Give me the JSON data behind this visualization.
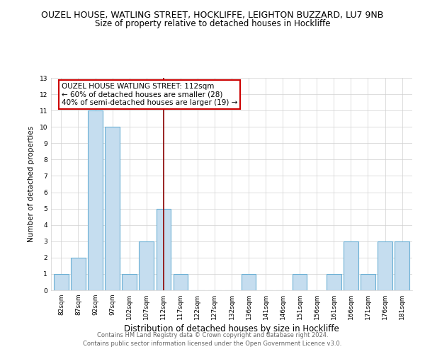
{
  "title": "OUZEL HOUSE, WATLING STREET, HOCKLIFFE, LEIGHTON BUZZARD, LU7 9NB",
  "subtitle": "Size of property relative to detached houses in Hockliffe",
  "xlabel": "Distribution of detached houses by size in Hockliffe",
  "ylabel": "Number of detached properties",
  "bar_labels": [
    "82sqm",
    "87sqm",
    "92sqm",
    "97sqm",
    "102sqm",
    "107sqm",
    "112sqm",
    "117sqm",
    "122sqm",
    "127sqm",
    "132sqm",
    "136sqm",
    "141sqm",
    "146sqm",
    "151sqm",
    "156sqm",
    "161sqm",
    "166sqm",
    "171sqm",
    "176sqm",
    "181sqm"
  ],
  "bar_values": [
    1,
    2,
    11,
    10,
    1,
    3,
    5,
    1,
    0,
    0,
    0,
    1,
    0,
    0,
    1,
    0,
    1,
    3,
    1,
    3,
    3
  ],
  "bar_color": "#c5ddef",
  "bar_edge_color": "#6aafd4",
  "ylim": [
    0,
    13
  ],
  "yticks": [
    0,
    1,
    2,
    3,
    4,
    5,
    6,
    7,
    8,
    9,
    10,
    11,
    12,
    13
  ],
  "highlight_index": 6,
  "highlight_line_color": "#8b0000",
  "annotation_text_line1": "OUZEL HOUSE WATLING STREET: 112sqm",
  "annotation_text_line2": "← 60% of detached houses are smaller (28)",
  "annotation_text_line3": "40% of semi-detached houses are larger (19) →",
  "annotation_box_edge_color": "#cc0000",
  "footer_line1": "Contains HM Land Registry data © Crown copyright and database right 2024.",
  "footer_line2": "Contains public sector information licensed under the Open Government Licence v3.0.",
  "grid_color": "#d0d0d0",
  "background_color": "#ffffff",
  "title_fontsize": 9,
  "subtitle_fontsize": 8.5,
  "xlabel_fontsize": 8.5,
  "ylabel_fontsize": 7.5,
  "tick_fontsize": 6.5,
  "annotation_fontsize": 7.5,
  "footer_fontsize": 6
}
